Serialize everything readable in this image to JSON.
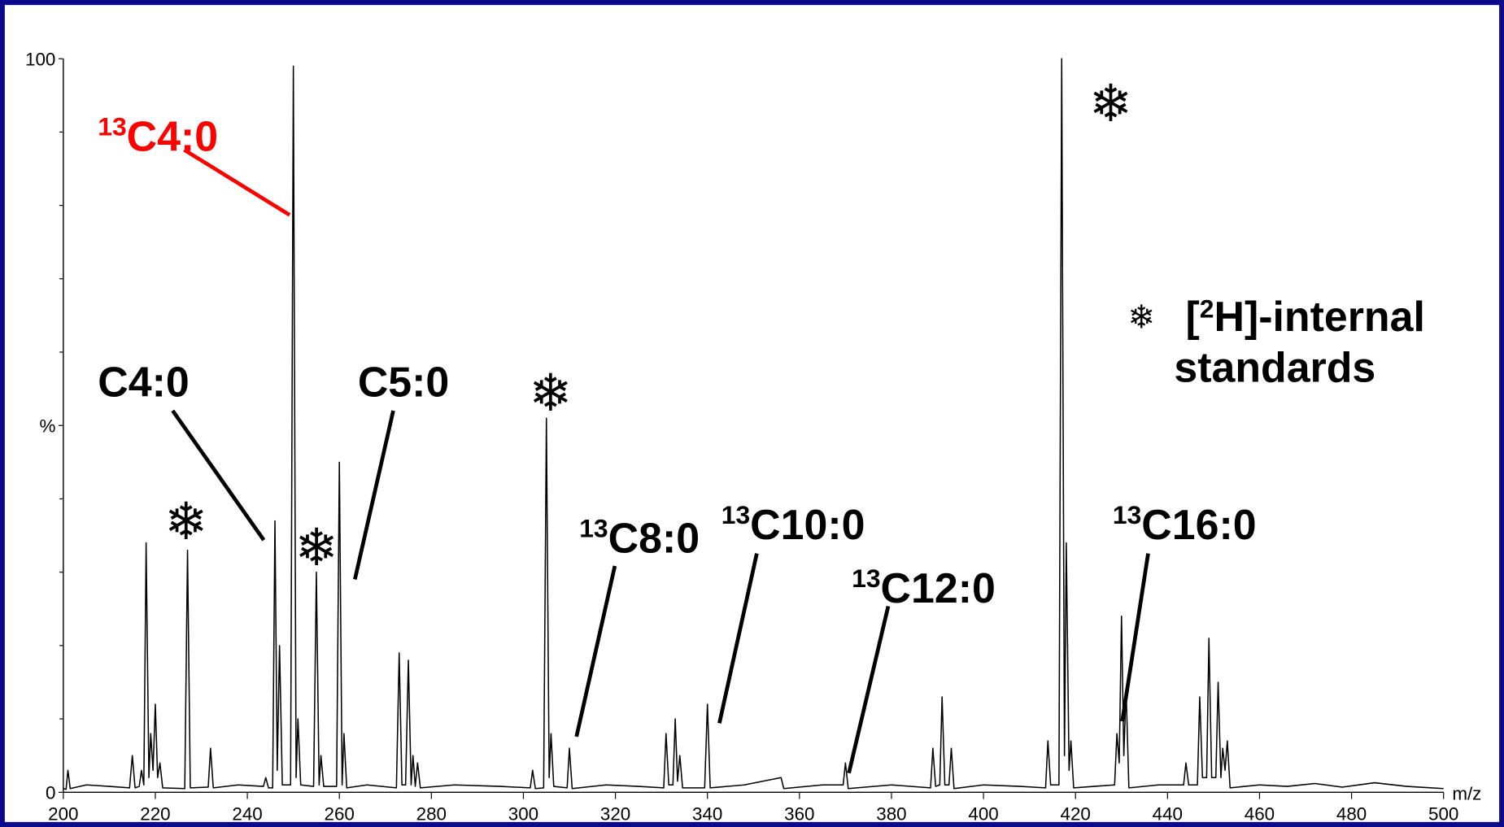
{
  "chart_data": {
    "type": "line",
    "x_label": "m/z",
    "xlim": [
      200,
      500
    ],
    "ylim": [
      0,
      100
    ],
    "xticks": [
      200,
      220,
      240,
      260,
      280,
      300,
      320,
      340,
      360,
      380,
      400,
      420,
      440,
      460,
      480,
      500
    ],
    "yticks": [
      0,
      {
        "value": 50,
        "label": "%"
      },
      100
    ],
    "yminorticks": [
      10,
      20,
      30,
      40,
      60,
      70,
      80,
      90
    ],
    "series": [
      {
        "color": "#000000",
        "x": [
          200,
          200.6,
          201,
          201.5,
          205,
          210,
          214.4,
          215,
          215.6,
          216.5,
          217,
          217.5,
          218,
          218.6,
          219,
          219.5,
          220,
          220.5,
          221,
          221.6,
          226.4,
          227,
          227.6,
          231.5,
          232,
          232.6,
          238,
          243.5,
          244,
          244.6,
          245.5,
          246,
          246.5,
          247,
          247.6,
          249.4,
          250,
          250.6,
          251,
          251.6,
          254.4,
          255,
          255.6,
          256,
          256.6,
          259.4,
          260,
          260.6,
          261,
          261.6,
          266,
          272.4,
          273,
          273.6,
          274.4,
          275,
          275.6,
          276,
          276.5,
          277,
          277.6,
          285,
          295,
          301.5,
          302,
          302.6,
          304.4,
          305,
          305.6,
          306,
          306.6,
          309.5,
          310,
          310.6,
          318,
          325,
          330.5,
          331,
          331.6,
          332.5,
          333,
          333.5,
          334,
          334.6,
          339.4,
          340,
          340.6,
          348,
          356,
          356.6,
          365,
          369.5,
          370,
          370.6,
          380,
          388.5,
          389,
          389.6,
          390.5,
          391,
          391.6,
          392.5,
          393,
          393.6,
          400,
          408,
          413.5,
          414,
          414.6,
          416.4,
          417,
          417.6,
          418,
          418.6,
          419,
          419.6,
          424,
          428.5,
          429,
          429.5,
          430,
          430.5,
          431,
          431.6,
          438,
          443.5,
          444,
          444.6,
          446.5,
          447,
          447.6,
          448.5,
          449,
          449.6,
          450.5,
          451,
          451.6,
          452,
          452.5,
          453,
          453.6,
          460,
          466,
          472,
          478,
          485,
          492,
          500
        ],
        "values": [
          0.5,
          0.4,
          3,
          0.5,
          1,
          0.8,
          0.6,
          5,
          0.6,
          0.8,
          3,
          1,
          34,
          2,
          8,
          3,
          12,
          2,
          4,
          0.6,
          0.5,
          33,
          0.6,
          0.7,
          6,
          0.6,
          1,
          0.8,
          2,
          0.6,
          0.6,
          37,
          3,
          20,
          1,
          1,
          99,
          2,
          10,
          1,
          0.8,
          30,
          1,
          5,
          0.8,
          0.8,
          45,
          1,
          8,
          0.6,
          1,
          0.6,
          19,
          1,
          1,
          18,
          1,
          5,
          0.8,
          4,
          0.6,
          1,
          0.8,
          0.6,
          3,
          0.5,
          0.6,
          51,
          2,
          8,
          0.8,
          0.6,
          6,
          0.5,
          1,
          0.8,
          0.6,
          8,
          1,
          1,
          10,
          1.5,
          5,
          0.6,
          0.6,
          12,
          0.6,
          1,
          2,
          0.5,
          1,
          1,
          4,
          0.5,
          1,
          0.6,
          6,
          0.8,
          1,
          13,
          1,
          1,
          6,
          0.5,
          1,
          0.8,
          0.6,
          7,
          1,
          1,
          100,
          5,
          34,
          3,
          7,
          0.6,
          0.8,
          1,
          8,
          4,
          24,
          5,
          14,
          0.6,
          1,
          1,
          4,
          1,
          1,
          13,
          2,
          2,
          21,
          2,
          2,
          15,
          2,
          6,
          3,
          7,
          0.6,
          1,
          0.8,
          1.2,
          0.7,
          1.3,
          0.8,
          0.5
        ]
      }
    ],
    "annotations": [
      {
        "sup": "13",
        "text": "C4:0",
        "color": "#ff0000"
      },
      {
        "text": "C4:0",
        "color": "#000000"
      },
      {
        "text": "C5:0",
        "color": "#000000"
      },
      {
        "sup": "13",
        "text": "C8:0",
        "color": "#000000"
      },
      {
        "sup": "13",
        "text": "C10:0",
        "color": "#000000"
      },
      {
        "sup": "13",
        "text": "C12:0",
        "color": "#000000"
      },
      {
        "sup": "13",
        "text": "C16:0",
        "color": "#000000"
      }
    ],
    "marker_symbol": "❄",
    "legend": {
      "pre": "[",
      "sup": "2",
      "post": "H]-internal",
      "line2": "standards"
    }
  }
}
